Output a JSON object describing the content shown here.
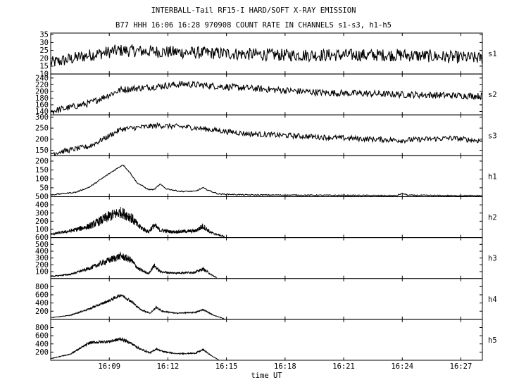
{
  "page": {
    "title": "INTERBALL-Tail RF15-I HARD/SOFT X-RAY EMISSION",
    "subtitle": "B77 HHH 16:06 16:28 970908  COUNT RATE IN CHANNELS s1-s3, h1-h5"
  },
  "chart_data": {
    "type": "line",
    "title": "INTERBALL-Tail RF15-I HARD/SOFT X-RAY EMISSION",
    "subtitle": "B77 HHH 16:06 16:28 970908  COUNT RATE IN CHANNELS s1-s3, h1-h5",
    "xlabel": "time UT",
    "x_range_minutes": [
      366.0,
      388.1
    ],
    "x_ticks": [
      {
        "value": 369,
        "label": "16:09"
      },
      {
        "value": 372,
        "label": "16:12"
      },
      {
        "value": 375,
        "label": "16:15"
      },
      {
        "value": 378,
        "label": "16:18"
      },
      {
        "value": 381,
        "label": "16:21"
      },
      {
        "value": 384,
        "label": "16:24"
      },
      {
        "value": 387,
        "label": "16:27"
      }
    ],
    "grid": false,
    "panels": [
      {
        "name": "s1",
        "ylim": [
          10,
          36
        ],
        "yticks": [
          10,
          15,
          20,
          25,
          30,
          35
        ],
        "profile": [
          [
            366.0,
            17
          ],
          [
            368.0,
            22
          ],
          [
            369.5,
            25
          ],
          [
            372,
            24
          ],
          [
            378,
            22
          ],
          [
            384,
            22
          ],
          [
            388.1,
            20
          ]
        ],
        "noise": 4,
        "end": 388.1
      },
      {
        "name": "s2",
        "ylim": [
          130,
          252
        ],
        "yticks": [
          140,
          160,
          180,
          200,
          220,
          240
        ],
        "profile": [
          [
            366.0,
            140
          ],
          [
            368.0,
            165
          ],
          [
            369.6,
            205
          ],
          [
            372.8,
            222
          ],
          [
            376,
            210
          ],
          [
            380,
            196
          ],
          [
            384,
            191
          ],
          [
            388.1,
            186
          ]
        ],
        "noise": 10,
        "end": 388.1
      },
      {
        "name": "s3",
        "ylim": [
          125,
          310
        ],
        "yticks": [
          150,
          200,
          250,
          300
        ],
        "profile": [
          [
            366.0,
            135
          ],
          [
            368.0,
            168
          ],
          [
            369.6,
            245
          ],
          [
            371.5,
            262
          ],
          [
            373,
            255
          ],
          [
            376,
            225
          ],
          [
            381,
            205
          ],
          [
            384,
            195
          ],
          [
            386.5,
            205
          ],
          [
            388.1,
            192
          ]
        ],
        "noise": 12,
        "end": 388.1
      },
      {
        "name": "h1",
        "ylim": [
          0,
          230
        ],
        "yticks": [
          50,
          100,
          150,
          200
        ],
        "profile": [
          [
            366.0,
            10
          ],
          [
            367.3,
            25
          ],
          [
            368.0,
            55
          ],
          [
            369.0,
            130
          ],
          [
            369.7,
            180
          ],
          [
            370.1,
            130
          ],
          [
            370.4,
            80
          ],
          [
            371.0,
            40
          ],
          [
            371.3,
            40
          ],
          [
            371.6,
            70
          ],
          [
            371.9,
            45
          ],
          [
            372.6,
            30
          ],
          [
            373.4,
            30
          ],
          [
            373.8,
            50
          ],
          [
            374.2,
            30
          ],
          [
            374.6,
            15
          ],
          [
            376,
            10
          ],
          [
            380,
            8
          ],
          [
            383.7,
            6
          ],
          [
            384.0,
            18
          ],
          [
            384.3,
            8
          ],
          [
            386.5,
            6
          ],
          [
            388.1,
            6
          ]
        ],
        "noise": 3,
        "end": 388.1
      },
      {
        "name": "h2",
        "ylim": [
          0,
          500
        ],
        "yticks": [
          100,
          200,
          300,
          400,
          500
        ],
        "profile": [
          [
            366.0,
            40
          ],
          [
            367.0,
            80
          ],
          [
            368.0,
            140
          ],
          [
            369.0,
            260
          ],
          [
            369.6,
            310
          ],
          [
            370.1,
            250
          ],
          [
            370.5,
            140
          ],
          [
            371.0,
            70
          ],
          [
            371.3,
            150
          ],
          [
            371.6,
            90
          ],
          [
            372.2,
            70
          ],
          [
            373.4,
            80
          ],
          [
            373.8,
            140
          ],
          [
            374.2,
            60
          ],
          [
            374.9,
            10
          ]
        ],
        "noise": 70,
        "end": 374.9
      },
      {
        "name": "h3",
        "ylim": [
          0,
          600
        ],
        "yticks": [
          100,
          200,
          300,
          400,
          500,
          600
        ],
        "profile": [
          [
            366.0,
            30
          ],
          [
            367.0,
            60
          ],
          [
            368.0,
            150
          ],
          [
            369.0,
            270
          ],
          [
            369.6,
            330
          ],
          [
            370.1,
            270
          ],
          [
            370.5,
            140
          ],
          [
            371.0,
            70
          ],
          [
            371.3,
            190
          ],
          [
            371.6,
            100
          ],
          [
            372.2,
            80
          ],
          [
            373.4,
            90
          ],
          [
            373.8,
            140
          ],
          [
            374.2,
            60
          ],
          [
            374.5,
            10
          ]
        ],
        "noise": 55,
        "end": 374.5
      },
      {
        "name": "h4",
        "ylim": [
          0,
          1000
        ],
        "yticks": [
          200,
          400,
          600,
          800
        ],
        "profile": [
          [
            366.0,
            40
          ],
          [
            367.0,
            100
          ],
          [
            368.0,
            260
          ],
          [
            369.0,
            460
          ],
          [
            369.6,
            600
          ],
          [
            370.1,
            450
          ],
          [
            370.6,
            240
          ],
          [
            371.1,
            150
          ],
          [
            371.4,
            300
          ],
          [
            371.7,
            200
          ],
          [
            372.4,
            150
          ],
          [
            373.4,
            170
          ],
          [
            373.8,
            240
          ],
          [
            374.3,
            110
          ],
          [
            374.9,
            10
          ]
        ],
        "noise": 40,
        "end": 374.9
      },
      {
        "name": "h5",
        "ylim": [
          0,
          1000
        ],
        "yticks": [
          200,
          400,
          600,
          800
        ],
        "profile": [
          [
            366.0,
            40
          ],
          [
            367.0,
            150
          ],
          [
            368.0,
            430
          ],
          [
            369.0,
            460
          ],
          [
            369.6,
            520
          ],
          [
            370.1,
            420
          ],
          [
            370.6,
            270
          ],
          [
            371.1,
            180
          ],
          [
            371.4,
            280
          ],
          [
            371.7,
            220
          ],
          [
            372.4,
            160
          ],
          [
            373.4,
            170
          ],
          [
            373.8,
            260
          ],
          [
            374.2,
            120
          ],
          [
            374.6,
            10
          ]
        ],
        "noise": 40,
        "end": 374.6
      }
    ]
  }
}
